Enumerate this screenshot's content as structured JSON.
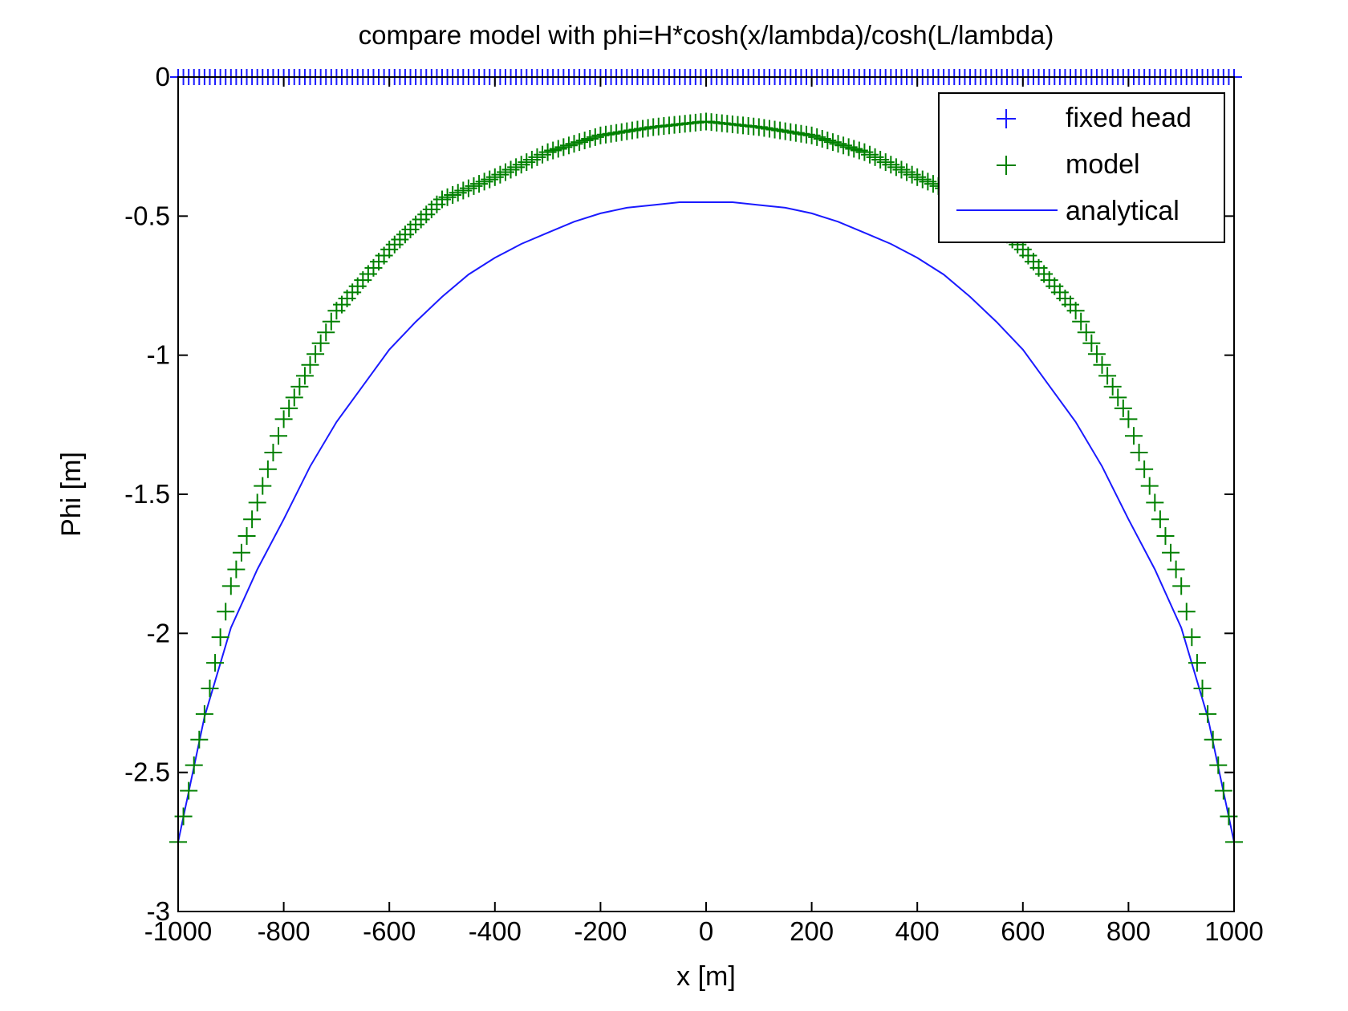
{
  "chart_data": {
    "type": "line",
    "title": "compare model with phi=H*cosh(x/lambda)/cosh(L/lambda)",
    "xlabel": "x [m]",
    "ylabel": "Phi [m]",
    "xlim": [
      -1000,
      1000
    ],
    "ylim": [
      -3,
      0
    ],
    "xticks": [
      -1000,
      -800,
      -600,
      -400,
      -200,
      0,
      200,
      400,
      600,
      800,
      1000
    ],
    "yticks": [
      0,
      -0.5,
      -1,
      -1.5,
      -2,
      -2.5,
      -3
    ],
    "xtick_labels": [
      "-1000",
      "-800",
      "-600",
      "-400",
      "-200",
      "0",
      "200",
      "400",
      "600",
      "800",
      "1000"
    ],
    "ytick_labels": [
      "0",
      "-0.5",
      "-1",
      "-1.5",
      "-2",
      "-2.5",
      "-3"
    ],
    "grid": false,
    "legend_position": "top-right",
    "series": [
      {
        "name": "fixed head",
        "style": "marker-plus",
        "color": "#1a1aff",
        "x_range": [
          -1000,
          1000
        ],
        "x_step": 10,
        "y_constant": 0
      },
      {
        "name": "model",
        "style": "marker-plus",
        "color": "#008000",
        "x_range": [
          -1000,
          1000
        ],
        "x_step": 10,
        "points": [
          [
            -1000,
            -2.75
          ],
          [
            -900,
            -1.83
          ],
          [
            -800,
            -1.23
          ],
          [
            -700,
            -0.84
          ],
          [
            -600,
            -0.62
          ],
          [
            -500,
            -0.44
          ],
          [
            -400,
            -0.36
          ],
          [
            -300,
            -0.27
          ],
          [
            -200,
            -0.21
          ],
          [
            -100,
            -0.18
          ],
          [
            0,
            -0.16
          ],
          [
            100,
            -0.18
          ],
          [
            200,
            -0.21
          ],
          [
            300,
            -0.27
          ],
          [
            400,
            -0.36
          ],
          [
            500,
            -0.44
          ],
          [
            600,
            -0.62
          ],
          [
            700,
            -0.84
          ],
          [
            800,
            -1.23
          ],
          [
            900,
            -1.83
          ],
          [
            1000,
            -2.75
          ]
        ]
      },
      {
        "name": "analytical",
        "style": "line",
        "color": "#1a1aff",
        "x_range": [
          -1000,
          1000
        ],
        "points": [
          [
            -1000,
            -2.75
          ],
          [
            -950,
            -2.3
          ],
          [
            -900,
            -1.98
          ],
          [
            -850,
            -1.77
          ],
          [
            -800,
            -1.59
          ],
          [
            -750,
            -1.4
          ],
          [
            -700,
            -1.24
          ],
          [
            -650,
            -1.11
          ],
          [
            -600,
            -0.98
          ],
          [
            -550,
            -0.88
          ],
          [
            -500,
            -0.79
          ],
          [
            -450,
            -0.71
          ],
          [
            -400,
            -0.65
          ],
          [
            -350,
            -0.6
          ],
          [
            -300,
            -0.56
          ],
          [
            -250,
            -0.52
          ],
          [
            -200,
            -0.49
          ],
          [
            -150,
            -0.47
          ],
          [
            -100,
            -0.46
          ],
          [
            -50,
            -0.45
          ],
          [
            0,
            -0.45
          ],
          [
            50,
            -0.45
          ],
          [
            100,
            -0.46
          ],
          [
            150,
            -0.47
          ],
          [
            200,
            -0.49
          ],
          [
            250,
            -0.52
          ],
          [
            300,
            -0.56
          ],
          [
            350,
            -0.6
          ],
          [
            400,
            -0.65
          ],
          [
            450,
            -0.71
          ],
          [
            500,
            -0.79
          ],
          [
            550,
            -0.88
          ],
          [
            600,
            -0.98
          ],
          [
            650,
            -1.11
          ],
          [
            700,
            -1.24
          ],
          [
            750,
            -1.4
          ],
          [
            800,
            -1.59
          ],
          [
            850,
            -1.77
          ],
          [
            900,
            -1.98
          ],
          [
            950,
            -2.3
          ],
          [
            1000,
            -2.75
          ]
        ]
      }
    ]
  }
}
